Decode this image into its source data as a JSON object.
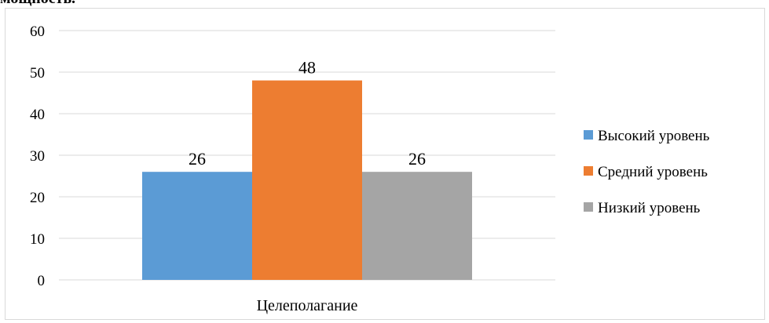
{
  "page": {
    "clipped_heading": "мощность."
  },
  "chart_data": {
    "type": "bar",
    "categories": [
      "Целеполагание"
    ],
    "series": [
      {
        "name": "Высокий уровень",
        "values": [
          26
        ],
        "color": "#5b9bd5"
      },
      {
        "name": "Средний уровень",
        "values": [
          48
        ],
        "color": "#ed7d31"
      },
      {
        "name": "Низкий уровень",
        "values": [
          26
        ],
        "color": "#a5a5a5"
      }
    ],
    "title": "",
    "xlabel": "",
    "ylabel": "",
    "ylim": [
      0,
      60
    ],
    "yticks": [
      0,
      10,
      20,
      30,
      40,
      50,
      60
    ],
    "grid": true,
    "data_labels": true,
    "legend_position": "right"
  }
}
